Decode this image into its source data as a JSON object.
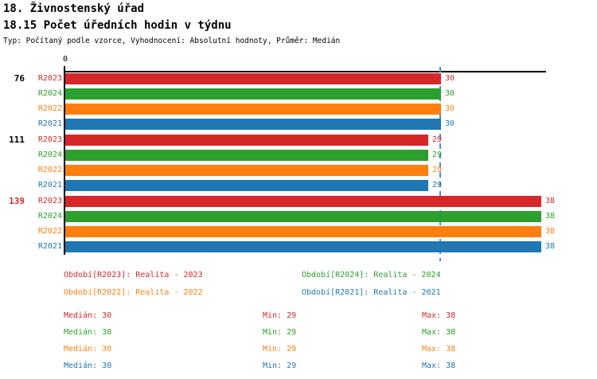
{
  "header": {
    "title": "18. Živnostenský úřad",
    "subtitle": "18.15 Počet úředních hodin v týdnu",
    "meta": "Typ: Počítaný podle vzorce, Vyhodnocení: Absolutní hodnoty, Průměr: Medián"
  },
  "colors": {
    "series": {
      "R2023": "#d62728",
      "R2024": "#2ca02c",
      "R2022": "#ff7f0e",
      "R2021": "#1f77b4"
    },
    "group_label_default": "#000000",
    "group_label_highlight": "#d62728",
    "median_line": "#4393c3",
    "axis": "#000000"
  },
  "chart_data": {
    "type": "bar",
    "orientation": "horizontal",
    "x_axis": {
      "zero_label": "0",
      "xlim": [
        0,
        38.5
      ],
      "grid": false
    },
    "median_line_value": 30,
    "series_order": [
      "R2023",
      "R2024",
      "R2022",
      "R2021"
    ],
    "groups": [
      {
        "label": "76",
        "highlighted": false,
        "bars": [
          {
            "series": "R2023",
            "value": 30
          },
          {
            "series": "R2024",
            "value": 30
          },
          {
            "series": "R2022",
            "value": 30
          },
          {
            "series": "R2021",
            "value": 30
          }
        ]
      },
      {
        "label": "111",
        "highlighted": false,
        "bars": [
          {
            "series": "R2023",
            "value": 29
          },
          {
            "series": "R2024",
            "value": 29
          },
          {
            "series": "R2022",
            "value": 29
          },
          {
            "series": "R2021",
            "value": 29
          }
        ]
      },
      {
        "label": "139",
        "highlighted": true,
        "bars": [
          {
            "series": "R2023",
            "value": 38
          },
          {
            "series": "R2024",
            "value": 38
          },
          {
            "series": "R2022",
            "value": 38
          },
          {
            "series": "R2021",
            "value": 38
          }
        ]
      }
    ]
  },
  "legend": {
    "items": [
      {
        "series": "R2023",
        "label": "Období[R2023]: Realita - 2023"
      },
      {
        "series": "R2024",
        "label": "Období[R2024]: Realita - 2024"
      },
      {
        "series": "R2022",
        "label": "Období[R2022]: Realita - 2022"
      },
      {
        "series": "R2021",
        "label": "Období[R2021]: Realita - 2021"
      }
    ]
  },
  "stats": {
    "rows": [
      {
        "series": "R2023",
        "median": "Medián: 30",
        "min": "Min: 29",
        "max": "Max: 38"
      },
      {
        "series": "R2024",
        "median": "Medián: 30",
        "min": "Min: 29",
        "max": "Max: 38"
      },
      {
        "series": "R2022",
        "median": "Medián: 30",
        "min": "Min: 29",
        "max": "Max: 38"
      },
      {
        "series": "R2021",
        "median": "Medián: 30",
        "min": "Min: 29",
        "max": "Max: 38"
      }
    ]
  }
}
